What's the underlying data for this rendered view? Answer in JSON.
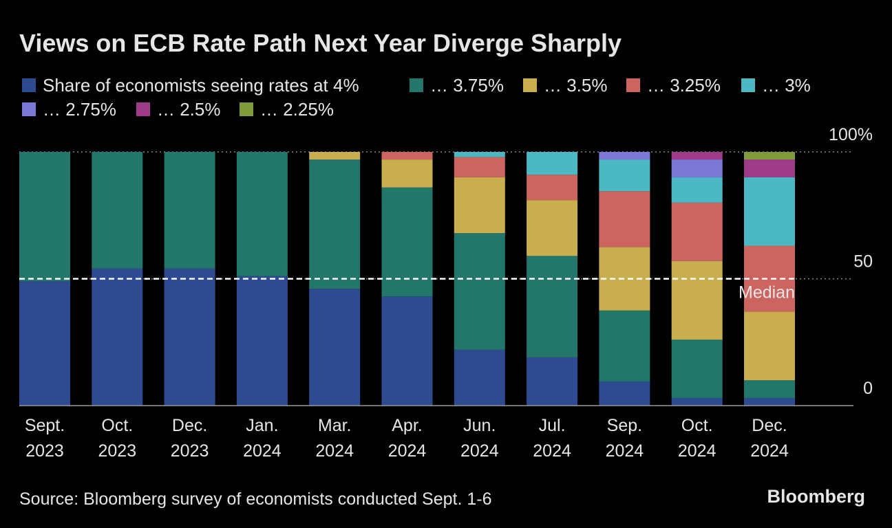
{
  "chart_data": {
    "type": "stacked_bar",
    "title": "Views on ECB Rate Path Next Year Diverge Sharply",
    "source": "Source: Bloomberg survey of economists conducted Sept. 1-6",
    "logo": "Bloomberg",
    "categories": [
      [
        "Sept.",
        "2023"
      ],
      [
        "Oct.",
        "2023"
      ],
      [
        "Dec.",
        "2023"
      ],
      [
        "Jan.",
        "2024"
      ],
      [
        "Mar.",
        "2024"
      ],
      [
        "Apr.",
        "2024"
      ],
      [
        "Jun.",
        "2024"
      ],
      [
        "Jul.",
        "2024"
      ],
      [
        "Sep.",
        "2024"
      ],
      [
        "Oct.",
        "2024"
      ],
      [
        "Dec.",
        "2024"
      ]
    ],
    "series": [
      {
        "name": "Share of economists seeing rates at 4%",
        "color": "#2e4b91",
        "values": [
          49,
          54,
          54,
          51,
          46,
          43,
          22,
          19,
          9.5,
          3,
          3
        ]
      },
      {
        "name": "… 3.75%",
        "color": "#22766a",
        "values": [
          51,
          46,
          46,
          49,
          51,
          43,
          46,
          40,
          28,
          23,
          7
        ]
      },
      {
        "name": "… 3.5%",
        "color": "#c9ae50",
        "values": [
          0,
          0,
          0,
          0,
          3,
          11,
          22,
          22,
          25,
          31,
          27
        ]
      },
      {
        "name": "… 3.25%",
        "color": "#cc6560",
        "values": [
          0,
          0,
          0,
          0,
          0,
          3,
          8,
          10,
          22,
          23,
          26
        ]
      },
      {
        "name": "… 3%",
        "color": "#4cb8c4",
        "values": [
          0,
          0,
          0,
          0,
          0,
          0,
          2,
          9,
          12.5,
          10,
          27
        ]
      },
      {
        "name": "… 2.75%",
        "color": "#7b78d6",
        "values": [
          0,
          0,
          0,
          0,
          0,
          0,
          0,
          0,
          3,
          7,
          0
        ]
      },
      {
        "name": "… 2.5%",
        "color": "#9e3c8a",
        "values": [
          0,
          0,
          0,
          0,
          0,
          0,
          0,
          0,
          0,
          3,
          7
        ]
      },
      {
        "name": "… 2.25%",
        "color": "#7f9a3a",
        "values": [
          0,
          0,
          0,
          0,
          0,
          0,
          0,
          0,
          0,
          0,
          3
        ]
      }
    ],
    "ylim": [
      0,
      100
    ],
    "yticks": [
      0,
      50,
      {
        "value": 100,
        "label": "100%"
      }
    ],
    "grid": true,
    "median": {
      "value": 50,
      "label": "Median"
    }
  }
}
